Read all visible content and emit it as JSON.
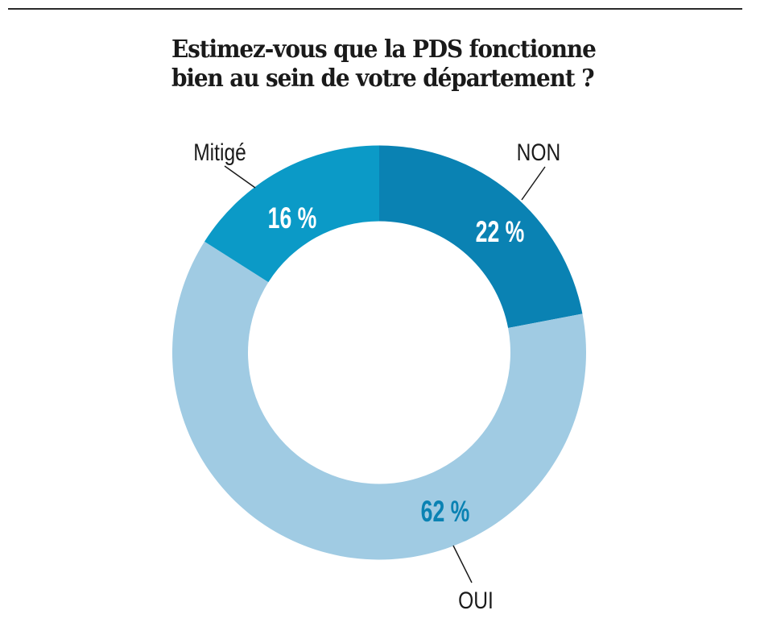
{
  "title": {
    "line1": "Estimez-vous que la PDS fonctionne",
    "line2": "bien au sein de votre département ?"
  },
  "chart_data": {
    "type": "pie",
    "variant": "donut",
    "title": "Estimez-vous que la PDS fonctionne bien au sein de votre département ?",
    "unit": "%",
    "start": "top",
    "direction": "clockwise",
    "slices": [
      {
        "label": "NON",
        "value": 22,
        "display": "22 %",
        "color": "#0a82b3",
        "value_text_color": "#ffffff"
      },
      {
        "label": "OUI",
        "value": 62,
        "display": "62 %",
        "color": "#a0cbe3",
        "value_text_color": "#0a82b3"
      },
      {
        "label": "Mitigé",
        "value": 16,
        "display": "16 %",
        "color": "#0b9ac7",
        "value_text_color": "#ffffff"
      }
    ]
  }
}
